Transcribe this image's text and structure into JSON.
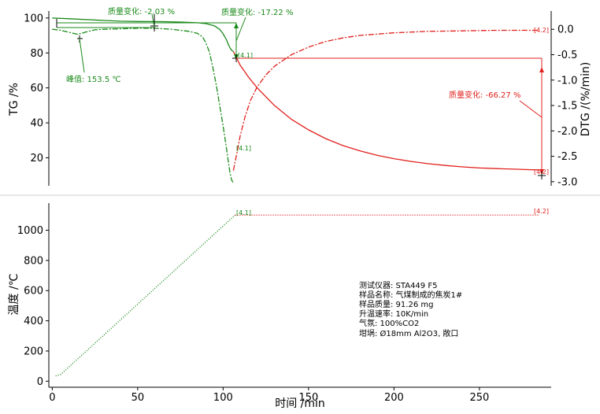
{
  "chart_data": [
    {
      "type": "line",
      "name": "top-panel",
      "xlabel": "",
      "ylabel": "TG /%",
      "y2label": "DTG /(%/min)",
      "xlim": [
        -2,
        292
      ],
      "ylim": [
        4,
        104
      ],
      "y2lim": [
        -3.08,
        0.36
      ],
      "yticks": [
        20,
        40,
        60,
        80,
        100
      ],
      "y2ticks": [
        0.0,
        -0.5,
        -1.0,
        -1.5,
        -2.0,
        -2.5,
        -3.0
      ],
      "y2tick_labels": [
        "0.0",
        "-0.5",
        "-1.0",
        "-1.5",
        "-2.0",
        "-2.5",
        "-3.0"
      ],
      "series": [
        {
          "axis": "left",
          "style": "solid",
          "segment": "low-temperature",
          "color": "#1a8a1a",
          "x": [
            0,
            10,
            20,
            30,
            40,
            50,
            57,
            65,
            75,
            85,
            90,
            95,
            98,
            100,
            102,
            103,
            104,
            105,
            106
          ],
          "y": [
            100,
            99.6,
            99.1,
            98.6,
            98.2,
            98.0,
            97.97,
            97.9,
            97.7,
            97.3,
            96.8,
            95.5,
            93.5,
            91.0,
            87.5,
            85.0,
            83.0,
            81.5,
            80.8
          ]
        },
        {
          "axis": "left",
          "style": "solid",
          "segment": "high-temperature",
          "color": "#e0201c",
          "x": [
            106,
            110,
            115,
            120,
            130,
            140,
            150,
            160,
            170,
            180,
            190,
            200,
            210,
            220,
            230,
            240,
            250,
            260,
            270,
            280,
            285
          ],
          "y": [
            80.8,
            73,
            66,
            60,
            50,
            42,
            36,
            31,
            27,
            24,
            21.5,
            19.5,
            17.9,
            16.6,
            15.6,
            14.8,
            14.2,
            13.8,
            13.5,
            13.2,
            13.1
          ]
        },
        {
          "axis": "right",
          "style": "dashdot",
          "segment": "low-temperature",
          "color": "#1a8a1a",
          "x": [
            0,
            5,
            10,
            15,
            20,
            25,
            30,
            40,
            50,
            60,
            70,
            80,
            85,
            88,
            90,
            92,
            94,
            96,
            98,
            100,
            102,
            103,
            104,
            105,
            106
          ],
          "y": [
            0.0,
            -0.02,
            -0.06,
            -0.1,
            -0.05,
            -0.01,
            0.0,
            0.01,
            0.02,
            0.02,
            0.0,
            -0.04,
            -0.08,
            -0.15,
            -0.27,
            -0.45,
            -0.75,
            -1.1,
            -1.5,
            -1.9,
            -2.35,
            -2.6,
            -2.82,
            -2.97,
            -3.02
          ]
        },
        {
          "axis": "right",
          "style": "dashdot",
          "segment": "high-temperature",
          "color": "#e0201c",
          "x": [
            106,
            108,
            110,
            113,
            116,
            120,
            125,
            130,
            140,
            150,
            160,
            170,
            180,
            200,
            220,
            240,
            260,
            285
          ],
          "y": [
            -2.78,
            -2.45,
            -2.1,
            -1.7,
            -1.4,
            -1.13,
            -0.9,
            -0.73,
            -0.5,
            -0.35,
            -0.24,
            -0.17,
            -0.12,
            -0.07,
            -0.04,
            -0.03,
            -0.02,
            -0.02
          ]
        }
      ],
      "annotations": {
        "mass_change_1": "质量变化: -2.03 %",
        "mass_change_2": "质量变化: -17.22 %",
        "mass_change_3": "质量变化: -66.27 %",
        "peak": "峰值: 153.5 ℃",
        "marker_41": "[4.1]",
        "marker_42": "[4.2]"
      }
    },
    {
      "type": "line",
      "name": "bottom-panel",
      "xlabel": "时间 /min",
      "ylabel": "温度 /℃",
      "xlim": [
        -2,
        292
      ],
      "ylim": [
        -40,
        1180
      ],
      "yticks": [
        0,
        200,
        400,
        600,
        800,
        1000
      ],
      "xticks": [
        0,
        50,
        100,
        150,
        200,
        250
      ],
      "series": [
        {
          "style": "dotted",
          "segment": "ramp",
          "color": "#1a8a1a",
          "x": [
            2,
            5,
            107
          ],
          "y": [
            35,
            45,
            1100
          ]
        },
        {
          "style": "dotted",
          "segment": "isothermal",
          "color": "#e0201c",
          "x": [
            107,
            285
          ],
          "y": [
            1100,
            1100
          ]
        }
      ],
      "annotations": {
        "marker_41": "[4.1]",
        "marker_42": "[4.2]"
      }
    }
  ],
  "info": {
    "instrument": "测试仪器: STA449 F5",
    "sample_name": "样品名称: 气煤制成的焦炭1#",
    "sample_mass": "样品质量: 91.26 mg",
    "heating_rate": "升温速率: 10K/min",
    "atmosphere": "气氛: 100%CO2",
    "crucible": "坩埚: Ø18mm  Al2O3, 敞口"
  }
}
